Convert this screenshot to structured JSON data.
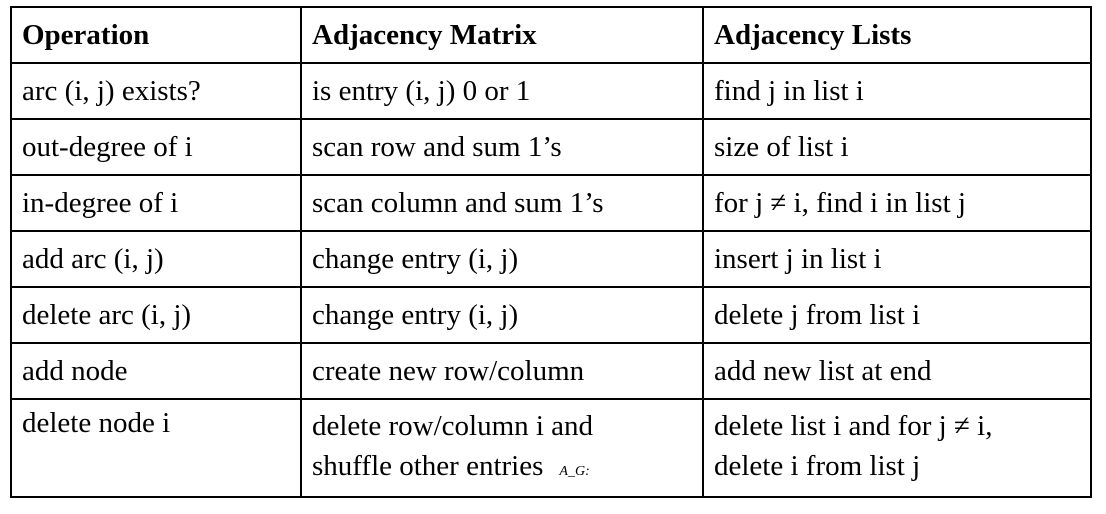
{
  "headers": [
    "Operation",
    "Adjacency Matrix",
    "Adjacency Lists"
  ],
  "rows": [
    [
      "arc (i, j) exists?",
      "is entry (i, j) 0 or 1",
      "find j in list i"
    ],
    [
      "out-degree of i",
      "scan row and sum 1’s",
      "size of list i"
    ],
    [
      "in-degree of i",
      "scan column and sum 1’s",
      "for j ≠ i, find i in list j"
    ],
    [
      "add arc (i, j)",
      "change entry (i, j)",
      "insert j in list i"
    ],
    [
      "delete arc (i, j)",
      "change entry (i, j)",
      "delete j from list i"
    ],
    [
      "add node",
      "create new row/column",
      "add new list at end"
    ]
  ],
  "last_row": {
    "op": "delete node i",
    "matrix_line1": "delete row/column i and",
    "matrix_line2": "shuffle other entries",
    "matrix_note": "A_G:",
    "lists_line1": "delete list i and for j ≠ i,",
    "lists_line2": "delete i from list j"
  }
}
